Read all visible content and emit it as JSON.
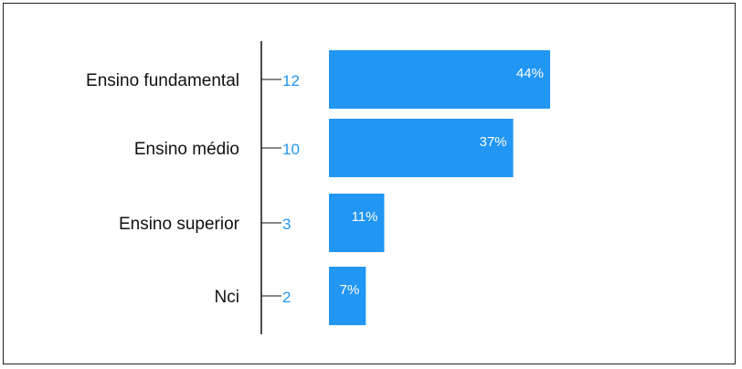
{
  "chart_data": {
    "type": "bar",
    "orientation": "horizontal",
    "title": "",
    "xlabel": "",
    "ylabel": "",
    "categories": [
      "Ensino fundamental",
      "Ensino médio",
      "Ensino superior",
      "Nci"
    ],
    "values": [
      12,
      10,
      3,
      2
    ],
    "value_labels": [
      "12",
      "10",
      "3",
      "2"
    ],
    "percent_labels": [
      "44%",
      "37%",
      "11%",
      "7%"
    ],
    "xlim": [
      0,
      12
    ],
    "grid": false,
    "legend": "none",
    "bar_color": "#2196F3",
    "count_label_color": "#2196F3",
    "axis_color": "#111111"
  }
}
